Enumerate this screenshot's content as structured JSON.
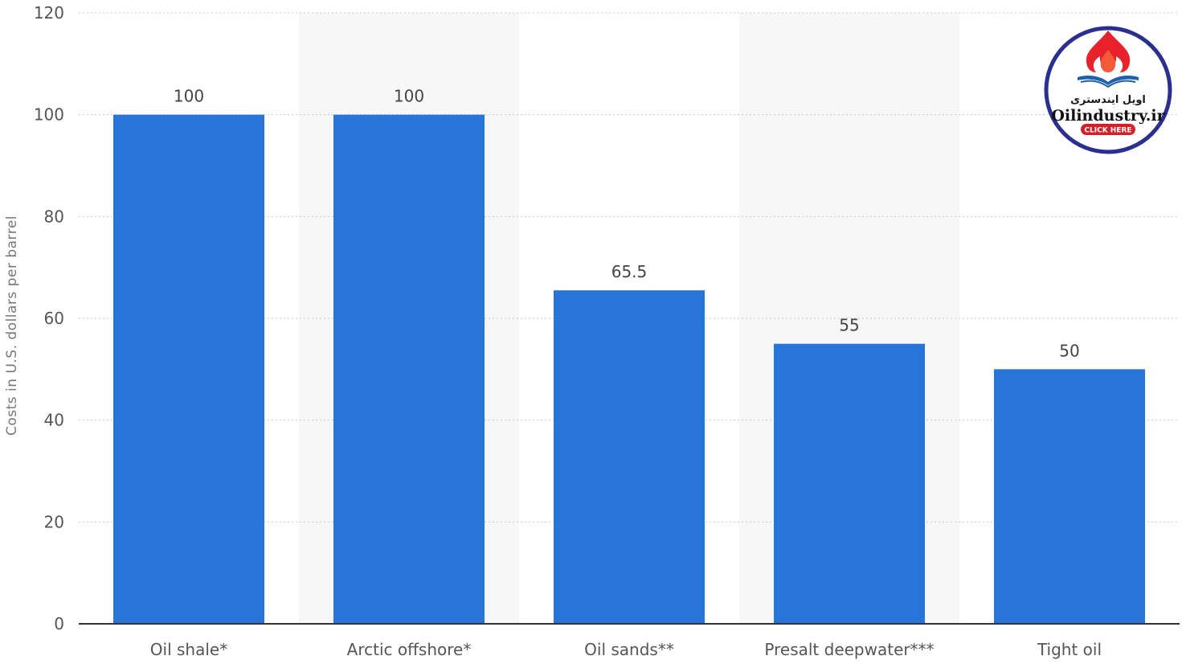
{
  "chart_data": {
    "type": "bar",
    "categories": [
      "Oil shale*",
      "Arctic offshore*",
      "Oil sands**",
      "Presalt deepwater***",
      "Tight oil"
    ],
    "values": [
      100,
      100,
      65.5,
      55,
      50
    ],
    "value_labels": [
      "100",
      "100",
      "65.5",
      "55",
      "50"
    ],
    "ylabel": "Costs in U.S. dollars per barrel",
    "xlabel": "",
    "ylim": [
      0,
      120
    ],
    "yticks": [
      0,
      20,
      40,
      60,
      80,
      100,
      120
    ],
    "grid": true,
    "legend": "none",
    "colors": {
      "bar": "#2875d9",
      "band": "#f7f7f7",
      "axis": "#333333"
    }
  },
  "logo": {
    "text_fa": "اویل ایندستری",
    "text_en": "Oilindustry.ir",
    "button_label": "CLICK HERE",
    "icon": "flame-book-icon",
    "colors": {
      "ring": "#2b2f8f",
      "flame": "#e8222a",
      "book": "#1f5fae",
      "button": "#d0202a"
    }
  }
}
